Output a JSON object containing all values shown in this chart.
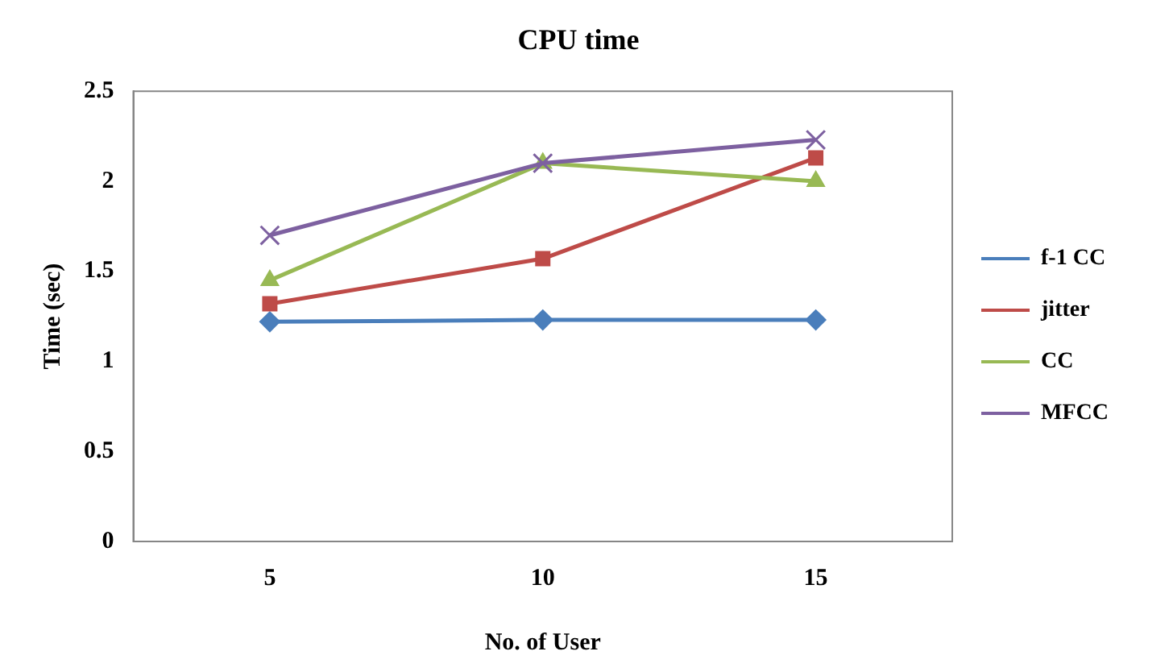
{
  "chart_data": {
    "type": "line",
    "title": "CPU time",
    "xlabel": "No. of User",
    "ylabel": "Time (sec)",
    "categories": [
      "5",
      "10",
      "15"
    ],
    "series": [
      {
        "name": "f-1 CC",
        "color": "#4a7ebb",
        "marker": "diamond",
        "values": [
          1.22,
          1.23,
          1.23
        ]
      },
      {
        "name": "jitter",
        "color": "#be4b48",
        "marker": "square",
        "values": [
          1.32,
          1.57,
          2.13
        ]
      },
      {
        "name": "CC",
        "color": "#98b954",
        "marker": "triangle",
        "values": [
          1.45,
          2.1,
          2.0
        ]
      },
      {
        "name": "MFCC",
        "color": "#7d60a0",
        "marker": "cross",
        "values": [
          1.7,
          2.1,
          2.23
        ]
      }
    ],
    "ylim": [
      0,
      2.5
    ],
    "yticks": [
      0,
      0.5,
      1,
      1.5,
      2,
      2.5
    ],
    "grid": false,
    "legend": "right"
  }
}
